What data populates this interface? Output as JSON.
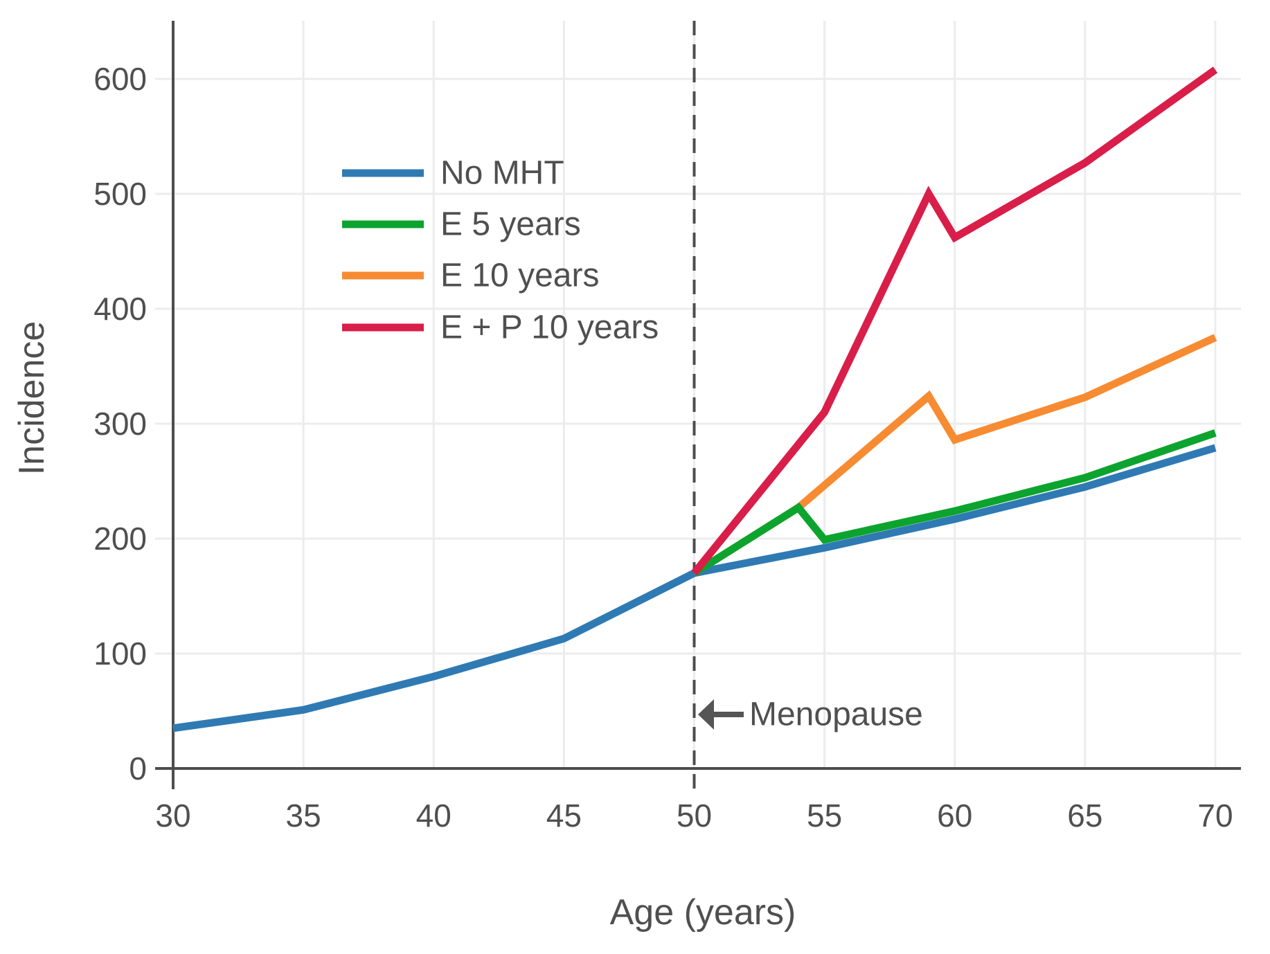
{
  "chart_data": {
    "type": "line",
    "title": "",
    "xlabel": "Age (years)",
    "ylabel": "Incidence",
    "xlim": [
      29.9,
      71
    ],
    "ylim": [
      0,
      655
    ],
    "xticks": [
      30,
      35,
      40,
      45,
      50,
      55,
      60,
      65,
      70
    ],
    "yticks": [
      0,
      100,
      200,
      300,
      400,
      500,
      600
    ],
    "grid": true,
    "legend_position": "upper-left-inside",
    "axis_color": "#4d4d4d",
    "grid_color": "#ececec",
    "text_color": "#4f4f4f",
    "vline": {
      "x": 50,
      "style": "dashed",
      "color": "#4d4d4d"
    },
    "annotation": {
      "text": "Menopause",
      "x": 50,
      "y": 47,
      "arrow": "left",
      "color": "#555555"
    },
    "series": [
      {
        "name": "No MHT",
        "color": "#2f7ab3",
        "points": [
          [
            30,
            35
          ],
          [
            35,
            51
          ],
          [
            40,
            80
          ],
          [
            45,
            113
          ],
          [
            50,
            170
          ],
          [
            55,
            192
          ],
          [
            60,
            217
          ],
          [
            65,
            245
          ],
          [
            70,
            279
          ]
        ]
      },
      {
        "name": "E 5 years",
        "color": "#0ca42e",
        "points": [
          [
            50,
            170
          ],
          [
            54,
            227
          ],
          [
            55,
            199
          ],
          [
            60,
            224
          ],
          [
            65,
            253
          ],
          [
            70,
            292
          ]
        ]
      },
      {
        "name": "E 10 years",
        "color": "#f78b32",
        "points": [
          [
            50,
            170
          ],
          [
            54,
            227
          ],
          [
            59,
            324
          ],
          [
            60,
            286
          ],
          [
            65,
            323
          ],
          [
            70,
            375
          ]
        ]
      },
      {
        "name": "E + P 10 years",
        "color": "#d91e49",
        "points": [
          [
            50,
            170
          ],
          [
            55,
            310
          ],
          [
            59,
            500
          ],
          [
            60,
            462
          ],
          [
            65,
            527
          ],
          [
            70,
            608
          ]
        ]
      }
    ]
  }
}
